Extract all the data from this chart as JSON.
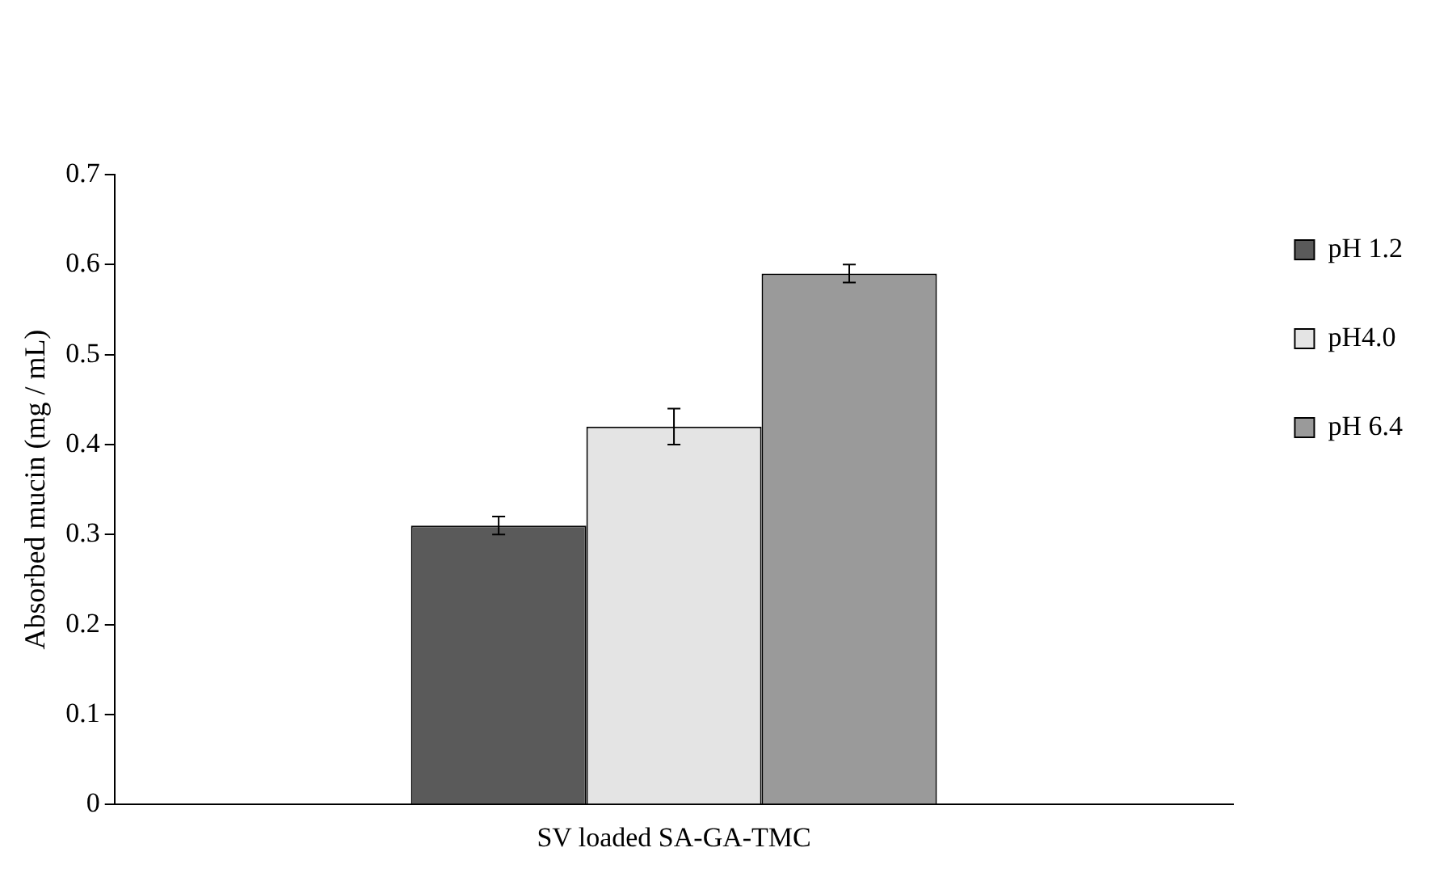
{
  "chart_data": {
    "type": "bar",
    "ylabel": "Absorbed mucin (mg / mL)",
    "categories": [
      "SV loaded SA-GA-TMC"
    ],
    "series": [
      {
        "name": "pH 1.2",
        "color": "#5a5a5a",
        "values": [
          0.31
        ],
        "errors": [
          0.01
        ]
      },
      {
        "name": "pH4.0",
        "color": "#e4e4e4",
        "values": [
          0.42
        ],
        "errors": [
          0.02
        ]
      },
      {
        "name": "pH 6.4",
        "color": "#9a9a9a",
        "values": [
          0.59
        ],
        "errors": [
          0.01
        ]
      }
    ],
    "ylim": [
      0,
      0.7
    ],
    "yticks": [
      0,
      0.1,
      0.2,
      0.3,
      0.4,
      0.5,
      0.6,
      0.7
    ],
    "grid": false,
    "legend": "top right"
  }
}
